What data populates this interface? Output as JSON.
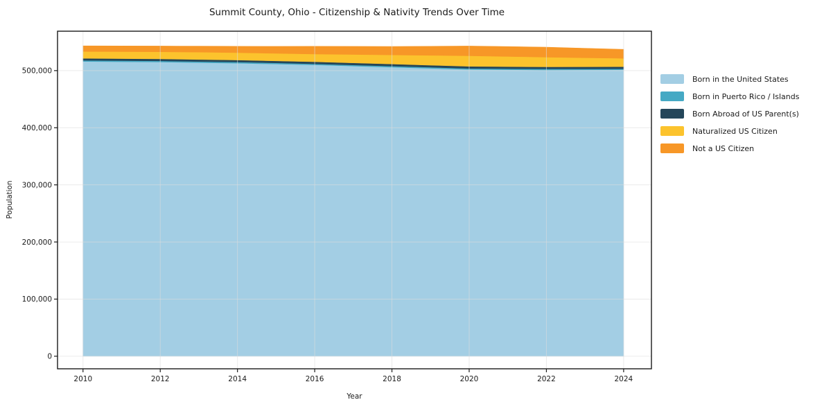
{
  "figure": {
    "title": "Summit County, Ohio - Citizenship & Nativity Trends Over Time"
  },
  "chart_data": {
    "type": "area",
    "stacked": true,
    "title": "Summit County, Ohio - Citizenship & Nativity Trends Over Time",
    "xlabel": "Year",
    "ylabel": "Population",
    "x": [
      2010,
      2011,
      2012,
      2013,
      2014,
      2015,
      2016,
      2017,
      2018,
      2019,
      2020,
      2021,
      2022,
      2023,
      2024
    ],
    "series": [
      {
        "name": "Born in the United States",
        "color": "#A3CEE4",
        "values": [
          516000,
          515500,
          515000,
          514000,
          513000,
          511500,
          510000,
          508000,
          506000,
          504000,
          502000,
          501500,
          501000,
          501200,
          501500
        ]
      },
      {
        "name": "Born in Puerto Rico / Islands",
        "color": "#45A9C4",
        "values": [
          2000,
          2000,
          2000,
          2000,
          2000,
          2000,
          1900,
          1900,
          2000,
          1900,
          1900,
          1900,
          2000,
          1900,
          1800
        ]
      },
      {
        "name": "Born Abroad of US Parent(s)",
        "color": "#24465A",
        "values": [
          3500,
          3500,
          3500,
          3500,
          3500,
          3500,
          3600,
          3600,
          3500,
          3600,
          3600,
          3600,
          3500,
          3600,
          3600
        ]
      },
      {
        "name": "Naturalized US Citizen",
        "color": "#FCC32D",
        "values": [
          12000,
          12200,
          12500,
          12800,
          13000,
          13200,
          13500,
          14800,
          16000,
          17200,
          18500,
          17800,
          17000,
          15800,
          14600
        ]
      },
      {
        "name": "Not a US Citizen",
        "color": "#F79727",
        "values": [
          9800,
          9900,
          10000,
          10500,
          11000,
          12200,
          13500,
          14100,
          14700,
          15900,
          17000,
          17300,
          17500,
          16600,
          15700
        ]
      }
    ],
    "xticks": [
      2010,
      2012,
      2014,
      2016,
      2018,
      2020,
      2022,
      2024
    ],
    "xtick_labels": [
      "2010",
      "2012",
      "2014",
      "2016",
      "2018",
      "2020",
      "2022",
      "2024"
    ],
    "yticks": [
      0,
      100000,
      200000,
      300000,
      400000,
      500000
    ],
    "ytick_labels": [
      "0",
      "100,000",
      "200,000",
      "300,000",
      "400,000",
      "500,000"
    ],
    "xlim": [
      2009.34,
      2024.72
    ],
    "ylim": [
      -22000,
      569000
    ],
    "grid": true,
    "grid_color": "#dcdcdc",
    "background": "#ffffff",
    "legend_position": "right-outside"
  }
}
